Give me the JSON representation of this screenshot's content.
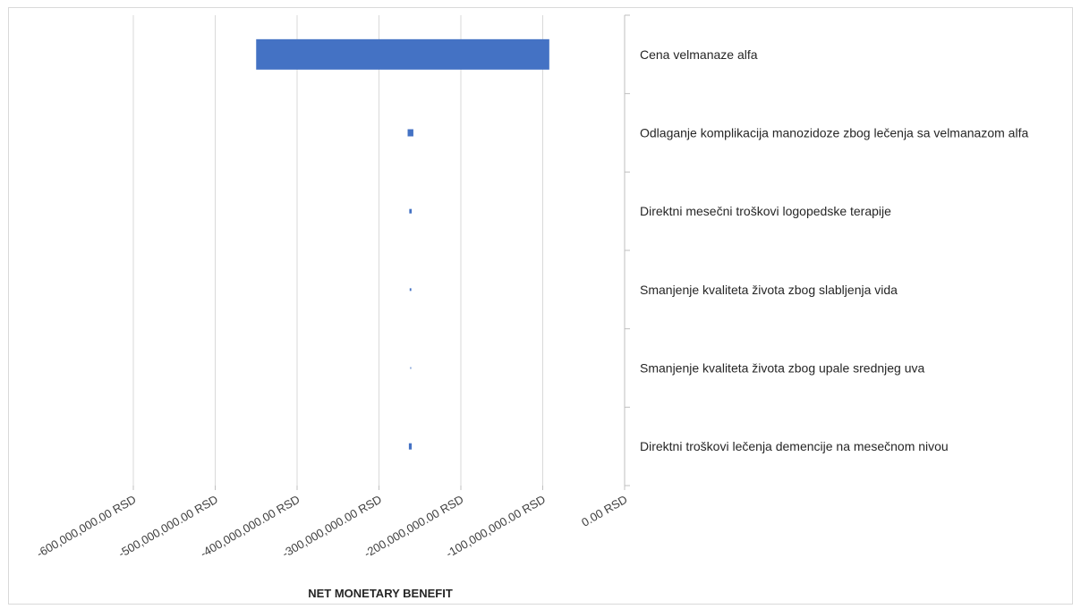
{
  "chart_data": {
    "type": "bar",
    "orientation": "horizontal",
    "subtype": "tornado",
    "title": "",
    "xlabel": "NET MONETARY BENEFIT",
    "ylabel": "",
    "xlim": [
      -600000000,
      0
    ],
    "x_ticks": [
      {
        "value": -600000000,
        "label": "-600,000,000.00 RSD"
      },
      {
        "value": -500000000,
        "label": "-500,000,000.00 RSD"
      },
      {
        "value": -400000000,
        "label": "-400,000,000.00 RSD"
      },
      {
        "value": -300000000,
        "label": "-300,000,000.00 RSD"
      },
      {
        "value": -200000000,
        "label": "-200,000,000.00 RSD"
      },
      {
        "value": -100000000,
        "label": "-100,000,000.00 RSD"
      },
      {
        "value": 0,
        "label": "0.00 RSD"
      }
    ],
    "grid": "vertical",
    "category_axis_position": "right",
    "bar_color": "#4472c4",
    "categories": [
      "Cena velmanaze alfa",
      "Odlaganje komplikacija manozidoze zbog lečenja sa velmanazom alfa",
      "Direktni mesečni troškovi logopedske terapije",
      "Smanjenje kvaliteta života zbog slabljenja vida",
      "Smanjenje kvaliteta života zbog upale srednjeg uva",
      "Direktni troškovi lečenja demencije na mesečnom nivou"
    ],
    "ranges": [
      {
        "low": -450000000,
        "high": -92000000
      },
      {
        "low": -265000000,
        "high": -258000000
      },
      {
        "low": -263000000,
        "high": -260000000
      },
      {
        "low": -262500000,
        "high": -260500000
      },
      {
        "low": -261800000,
        "high": -261000000
      },
      {
        "low": -263500000,
        "high": -260000000
      }
    ]
  }
}
